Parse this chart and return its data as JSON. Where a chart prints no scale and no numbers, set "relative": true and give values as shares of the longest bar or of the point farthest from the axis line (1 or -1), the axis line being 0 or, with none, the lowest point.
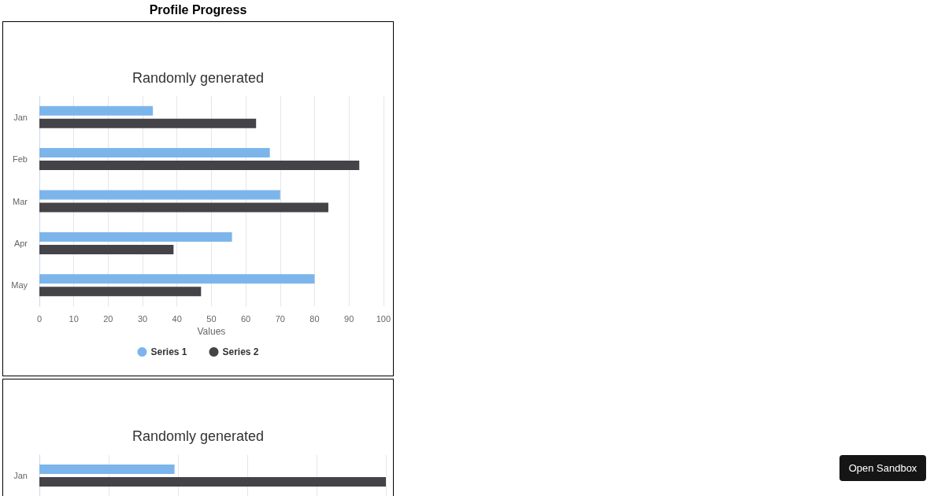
{
  "chart_data": [
    {
      "type": "bar",
      "orientation": "horizontal",
      "title": "Randomly generated",
      "annotations": [
        "Profile Progress",
        "Open Sandbox"
      ],
      "categories": [
        "Jan",
        "Feb",
        "Mar",
        "Apr",
        "May"
      ],
      "series": [
        {
          "name": "Series 1",
          "color": "#7cb5ec",
          "values": [
            33,
            67,
            70,
            56,
            80
          ]
        },
        {
          "name": "Series 2",
          "color": "#434348",
          "values": [
            63,
            93,
            84,
            39,
            47
          ]
        }
      ],
      "xlabel": "Values",
      "xlim": [
        0,
        100
      ],
      "xticks": [
        0,
        10,
        20,
        30,
        40,
        50,
        60,
        70,
        80,
        90,
        100
      ],
      "grid": "x",
      "legend": "bottom"
    },
    {
      "type": "bar",
      "orientation": "horizontal",
      "title": "Randomly generated",
      "categories": [
        "Jan"
      ],
      "relative": true,
      "series": [
        {
          "color": "#7cb5ec",
          "values": [
            0.39
          ]
        },
        {
          "color": "#434348",
          "values": [
            1
          ]
        }
      ],
      "grid": "x"
    }
  ]
}
